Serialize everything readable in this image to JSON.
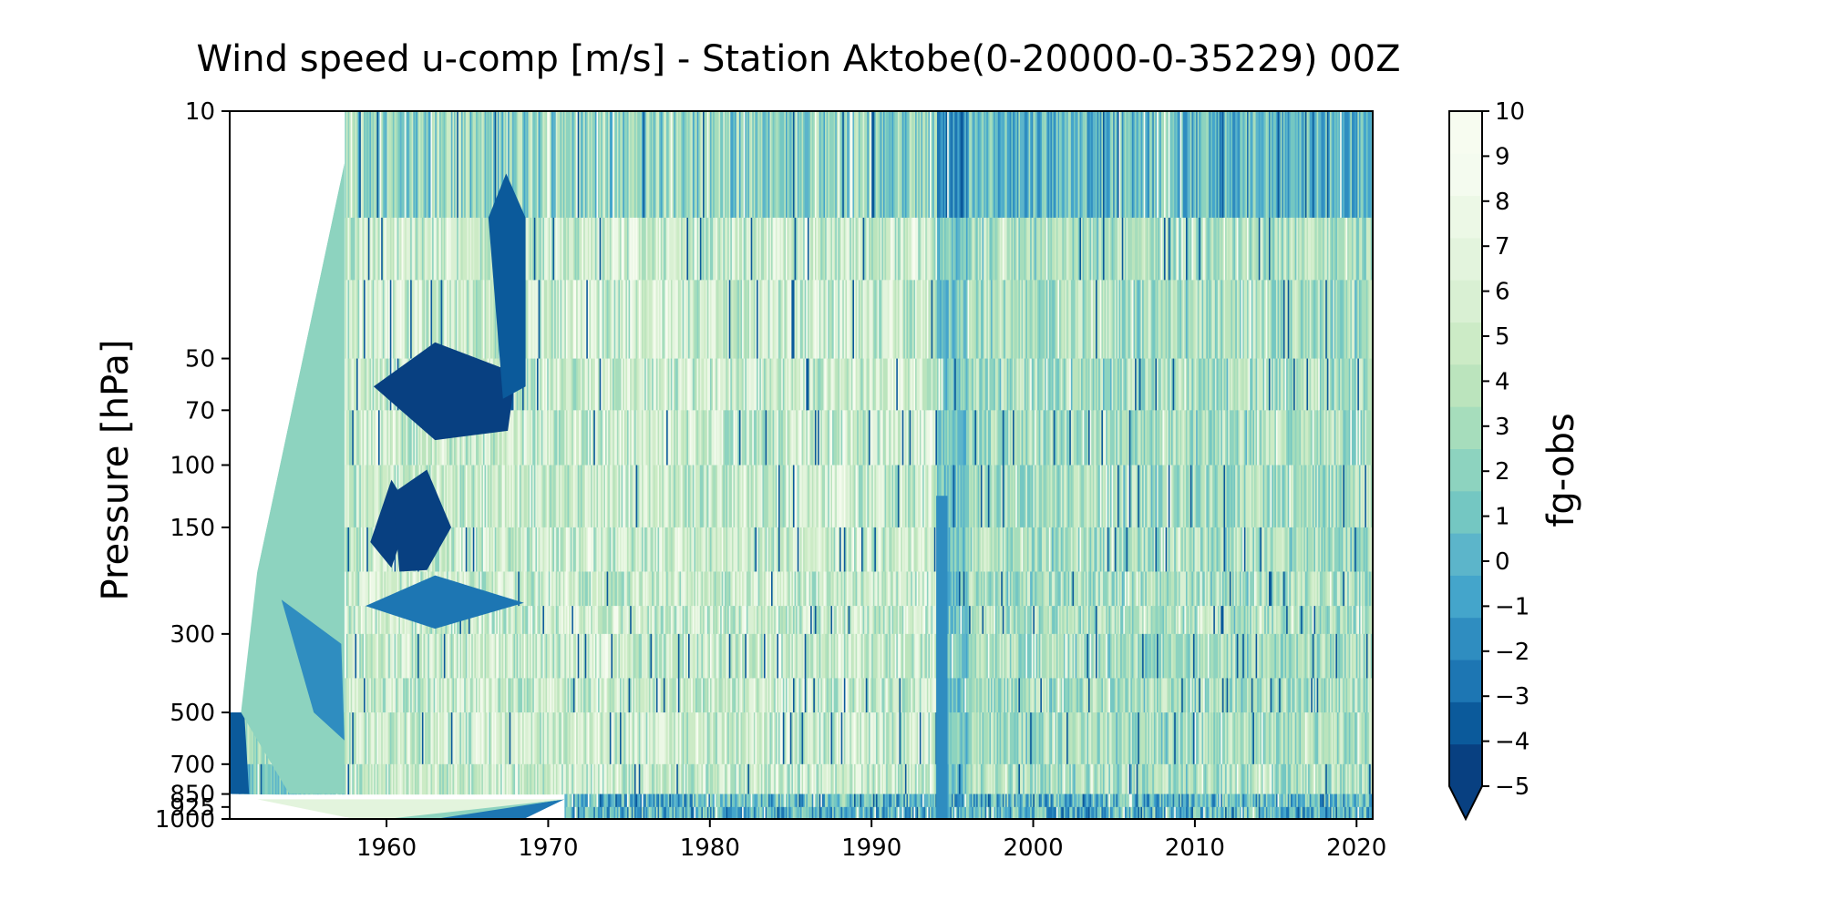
{
  "chart_data": {
    "type": "heatmap",
    "title": "Wind speed u-comp [m/s] - Station Aktobe(0-20000-0-35229) 00Z",
    "xlabel": "",
    "ylabel": "Pressure [hPa]",
    "colorbar_label": "fg-obs",
    "x_ticks": [
      1960,
      1970,
      1980,
      1990,
      2000,
      2010,
      2020
    ],
    "xlim": [
      1950.3,
      2021.0
    ],
    "y_ticks": [
      10,
      50,
      70,
      100,
      150,
      300,
      500,
      700,
      850,
      925,
      1000
    ],
    "y_levels": [
      10,
      20,
      30,
      50,
      70,
      100,
      150,
      200,
      250,
      300,
      400,
      500,
      700,
      850,
      925,
      1000
    ],
    "ylim": [
      10,
      1000
    ],
    "y_inverted": true,
    "colorbar_ticks": [
      10,
      9,
      8,
      7,
      6,
      5,
      4,
      3,
      2,
      1,
      0,
      -1,
      -2,
      -3,
      -4,
      -5
    ],
    "colorbar_range": [
      -5,
      10
    ],
    "colorbar_extend": "min",
    "colormap": [
      "#084081",
      "#0b5a9b",
      "#1d76b3",
      "#2f8dc0",
      "#44a5cb",
      "#5cb5ca",
      "#74c7c2",
      "#8dd3bf",
      "#a6ddbc",
      "#bbe4bd",
      "#ccebc6",
      "#d9f0d3",
      "#e3f4dd",
      "#ecf8e6",
      "#f4fbef",
      "#f7fcf0"
    ],
    "field_summary": "Dense vertical stripes of fg-obs values (mostly 3 to 8) from about 1957 to 2021; station coverage begins near 1950 at 500-850 hPa; lowest levels (850-1000 hPa) sparse and dominated by negative values before about 1971; a distinct strong negative band near 1994.",
    "frame_color": "#000000"
  }
}
